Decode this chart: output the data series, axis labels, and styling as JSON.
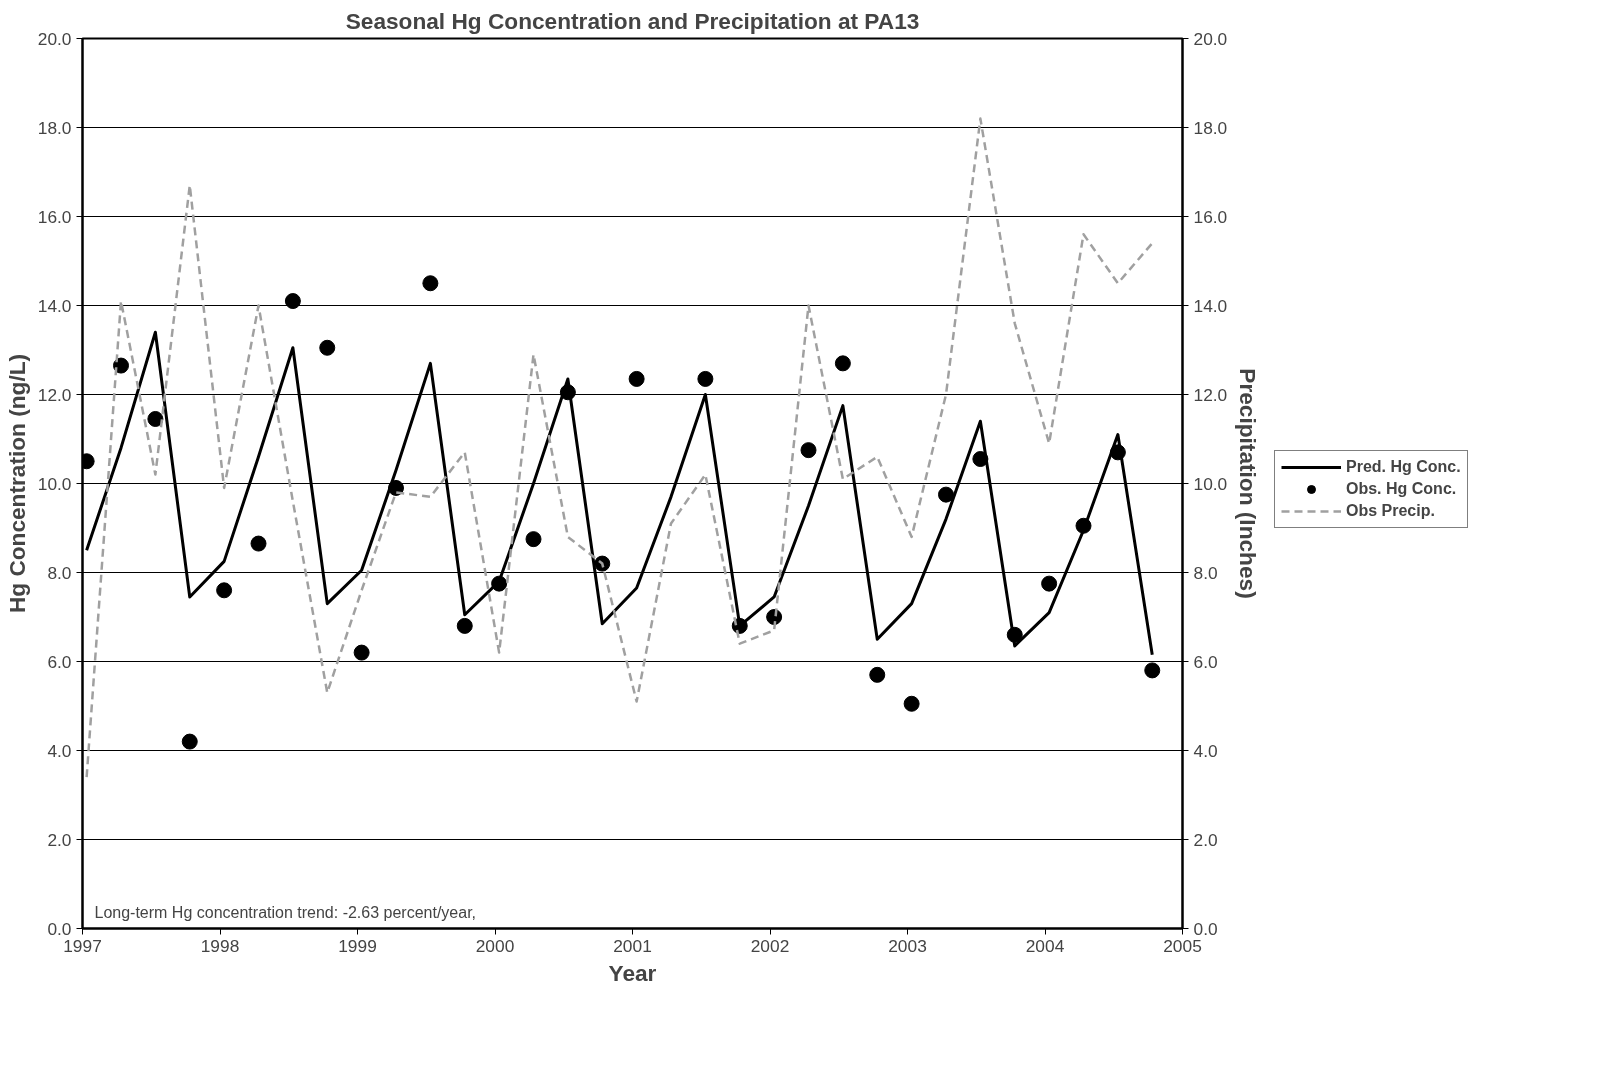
{
  "chart_data": {
    "type": "line",
    "title": "Seasonal Hg Concentration and Precipitation at PA13",
    "xlabel": "Year",
    "ylabel": "Hg Concentration (ng/L)",
    "y2label": "Precipitation (Inches)",
    "x": [
      1997.03,
      1997.28,
      1997.53,
      1997.78,
      1998.03,
      1998.28,
      1998.53,
      1998.78,
      1999.03,
      1999.28,
      1999.53,
      1999.78,
      2000.03,
      2000.28,
      2000.53,
      2000.78,
      2001.03,
      2001.28,
      2001.53,
      2001.78,
      2002.03,
      2002.28,
      2002.53,
      2002.78,
      2003.03,
      2003.28,
      2003.53,
      2003.78,
      2004.03,
      2004.28,
      2004.53,
      2004.78
    ],
    "series": [
      {
        "name": "Pred. Hg Conc.",
        "color": "#000000",
        "line_style": "solid",
        "marker": "none",
        "values": [
          8.5,
          10.8,
          13.4,
          7.45,
          8.25,
          10.6,
          13.05,
          7.3,
          8.05,
          10.3,
          12.7,
          7.05,
          7.8,
          10.0,
          12.35,
          6.85,
          7.65,
          9.7,
          12.0,
          6.8,
          7.45,
          9.5,
          11.75,
          6.5,
          7.3,
          9.2,
          11.4,
          6.35,
          7.1,
          8.95,
          11.1,
          6.15
        ]
      },
      {
        "name": "Obs. Hg Conc.",
        "type": "scatter",
        "color": "#000000",
        "marker": "circle",
        "values": [
          10.5,
          12.65,
          11.45,
          4.2,
          7.6,
          8.65,
          14.1,
          13.05,
          6.2,
          9.9,
          14.5,
          6.8,
          7.75,
          8.75,
          12.05,
          8.2,
          12.35,
          null,
          12.35,
          6.8,
          7.0,
          10.75,
          12.7,
          5.7,
          5.05,
          9.75,
          10.55,
          6.6,
          7.75,
          9.05,
          10.7,
          5.8
        ]
      },
      {
        "name": "Obs Precip.",
        "type": "line",
        "axis": "y2",
        "color": "#a0a0a0",
        "line_style": "dashed",
        "marker": "none",
        "values": [
          3.4,
          14.1,
          10.2,
          16.7,
          9.9,
          14.0,
          9.6,
          5.3,
          7.6,
          9.8,
          9.7,
          10.7,
          6.2,
          12.9,
          8.8,
          8.2,
          5.1,
          9.1,
          10.2,
          6.4,
          6.7,
          14.0,
          10.1,
          10.6,
          8.8,
          12.0,
          18.2,
          13.6,
          10.9,
          15.6,
          14.5,
          15.4
        ]
      }
    ],
    "xlim": [
      1997,
      2005
    ],
    "xticks": [
      1997,
      1998,
      1999,
      2000,
      2001,
      2002,
      2003,
      2004,
      2005
    ],
    "ylim": [
      0,
      20
    ],
    "yticks": [
      {
        "value": 0,
        "label": "0.0"
      },
      {
        "value": 2,
        "label": "2.0"
      },
      {
        "value": 4,
        "label": "4.0"
      },
      {
        "value": 6,
        "label": "6.0"
      },
      {
        "value": 8,
        "label": "8.0"
      },
      {
        "value": 10,
        "label": "10.0"
      },
      {
        "value": 12,
        "label": "12.0"
      },
      {
        "value": 14,
        "label": "14.0"
      },
      {
        "value": 16,
        "label": "16.0"
      },
      {
        "value": 18,
        "label": "18.0"
      },
      {
        "value": 20,
        "label": "20.0"
      }
    ],
    "y2lim": [
      0,
      20
    ],
    "y2ticks": [
      {
        "value": 0,
        "label": "0.0"
      },
      {
        "value": 2,
        "label": "2.0"
      },
      {
        "value": 4,
        "label": "4.0"
      },
      {
        "value": 6,
        "label": "6.0"
      },
      {
        "value": 8,
        "label": "8.0"
      },
      {
        "value": 10,
        "label": "10.0"
      },
      {
        "value": 12,
        "label": "12.0"
      },
      {
        "value": 14,
        "label": "14.0"
      },
      {
        "value": 16,
        "label": "16.0"
      },
      {
        "value": 18,
        "label": "18.0"
      },
      {
        "value": 20,
        "label": "20.0"
      }
    ],
    "grid": "y",
    "legend": "right",
    "annotations": [
      "Long-term Hg concentration trend:  -2.63 percent/year,"
    ]
  }
}
